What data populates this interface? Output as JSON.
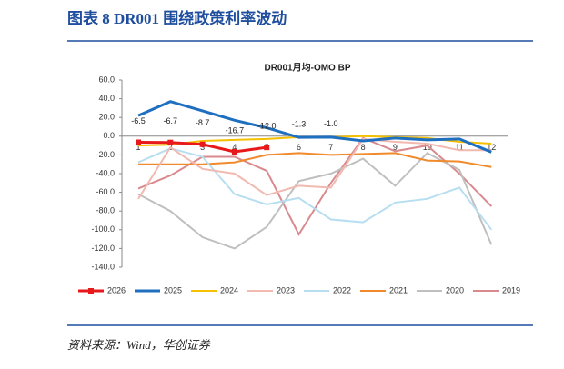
{
  "header": {
    "title": "图表 8 DR001 围绕政策利率波动"
  },
  "source": "资料来源：Wind，华创证券",
  "chart_data": {
    "type": "line",
    "title": "DR001月均-OMO BP",
    "categories": [
      "1",
      "2",
      "3",
      "4",
      "5",
      "6",
      "7",
      "8",
      "9",
      "10",
      "11",
      "12"
    ],
    "ylim": [
      -140,
      60
    ],
    "yticks": [
      {
        "value": 60,
        "label": "60.0"
      },
      {
        "value": 40,
        "label": "40.0"
      },
      {
        "value": 20,
        "label": "20.0"
      },
      {
        "value": 0,
        "label": "0.0"
      },
      {
        "value": -20,
        "label": "-20.0"
      },
      {
        "value": -40,
        "label": "-40.0"
      },
      {
        "value": -60,
        "label": "-60.0"
      },
      {
        "value": -80,
        "label": "-80.0"
      },
      {
        "value": -100,
        "label": "-100.0"
      },
      {
        "value": -120,
        "label": "-120.0"
      },
      {
        "value": -140,
        "label": "-140.0"
      }
    ],
    "series": [
      {
        "name": "2026",
        "color": "#e8191b",
        "values": [
          -6.5,
          -6.7,
          -8.7,
          -16.7,
          -12.0,
          null,
          null,
          null,
          null,
          null,
          null,
          null
        ],
        "value_labels": [
          "-6.5",
          "-6.7",
          "-8.7",
          "-16.7",
          "-12.0",
          null,
          null,
          null,
          null,
          null,
          null,
          null
        ]
      },
      {
        "name": "2025",
        "color": "#1f6fc1",
        "values": [
          22,
          37,
          27,
          17,
          9,
          -1.3,
          -1.0,
          -5,
          -2,
          -4,
          -3,
          -17
        ],
        "value_labels": [
          null,
          null,
          null,
          null,
          null,
          "-1.3",
          "-1.0",
          null,
          null,
          null,
          null,
          null
        ]
      },
      {
        "name": "2024",
        "color": "#f5c000",
        "values": [
          -10,
          -9,
          -5,
          -4,
          -3,
          -1,
          -1,
          0,
          -1,
          -2,
          -6,
          -8
        ]
      },
      {
        "name": "2023",
        "color": "#f2b9b0",
        "values": [
          -67,
          -12,
          -35,
          -40,
          -63,
          -53,
          -55,
          -3,
          -6,
          -8,
          -15,
          -15
        ]
      },
      {
        "name": "2022",
        "color": "#b7def0",
        "values": [
          -28,
          -13,
          -22,
          -62,
          -73,
          -66,
          -89,
          -92,
          -71,
          -67,
          -55,
          -100
        ]
      },
      {
        "name": "2021",
        "color": "#f08a2c",
        "values": [
          -30,
          -30,
          -30,
          -28,
          -20,
          -18,
          -20,
          -19,
          -18,
          -26,
          -27,
          -33
        ]
      },
      {
        "name": "2020",
        "color": "#bfbfbf",
        "values": [
          -62,
          -80,
          -108,
          -120,
          -97,
          -48,
          -40,
          -24,
          -53,
          -18,
          -36,
          -116
        ]
      },
      {
        "name": "2019",
        "color": "#d98a8e",
        "values": [
          -56,
          -42,
          -22,
          -22,
          -37,
          -105,
          -50,
          -2,
          -16,
          -10,
          -40,
          -75
        ]
      }
    ]
  }
}
